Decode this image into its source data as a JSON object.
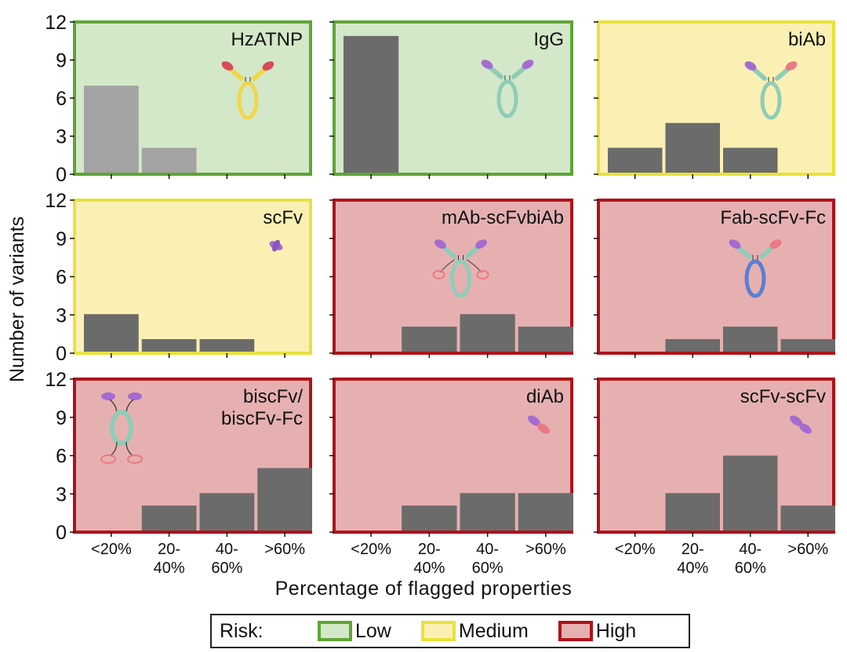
{
  "chart_data": {
    "type": "bar",
    "title": "",
    "xlabel": "Percentage of flagged properties",
    "ylabel": "Number of variants",
    "ylim": [
      0,
      12
    ],
    "yticks": [
      "0",
      "3",
      "6",
      "9",
      "12"
    ],
    "categories": [
      "<20%",
      "20-40%",
      "40-60%",
      ">60%"
    ],
    "category_lines": [
      [
        "<20%"
      ],
      [
        "20-",
        "40%"
      ],
      [
        "40-",
        "60%"
      ],
      [
        ">60%"
      ]
    ],
    "grid": false,
    "panels": [
      {
        "name": "HzATNP",
        "label_lines": [
          "HzATNP"
        ],
        "risk": "low",
        "values": [
          7,
          2,
          0,
          0
        ],
        "bar_color": "#a3a3a3",
        "icon": "full-antibody-icon"
      },
      {
        "name": "IgG",
        "label_lines": [
          "IgG"
        ],
        "risk": "low",
        "values": [
          11,
          0,
          0,
          0
        ],
        "bar_color": "#6b6b6b",
        "icon": "full-antibody-icon"
      },
      {
        "name": "biAb",
        "label_lines": [
          "biAb"
        ],
        "risk": "medium",
        "values": [
          2,
          4,
          2,
          0
        ],
        "bar_color": "#6b6b6b",
        "icon": "full-antibody-icon"
      },
      {
        "name": "scFv",
        "label_lines": [
          "scFv"
        ],
        "risk": "medium",
        "values": [
          3,
          1,
          1,
          0
        ],
        "bar_color": "#6b6b6b",
        "icon": "scfv-fragment-icon"
      },
      {
        "name": "mAb-scFvbiAb",
        "label_lines": [
          "mAb-scFvbiAb"
        ],
        "risk": "high",
        "values": [
          0,
          2,
          3,
          2
        ],
        "bar_color": "#6b6b6b",
        "icon": "antibody-with-scfv-icon"
      },
      {
        "name": "Fab-scFv-Fc",
        "label_lines": [
          "Fab-scFv-Fc"
        ],
        "risk": "high",
        "values": [
          0,
          1,
          2,
          1
        ],
        "bar_color": "#6b6b6b",
        "icon": "full-antibody-icon"
      },
      {
        "name": "biscFv/biscFv-Fc",
        "label_lines": [
          "biscFv/",
          "biscFv-Fc"
        ],
        "risk": "high",
        "values": [
          0,
          2,
          3,
          5
        ],
        "bar_color": "#6b6b6b",
        "icon": "biscfv-fc-icon"
      },
      {
        "name": "diAb",
        "label_lines": [
          "diAb"
        ],
        "risk": "high",
        "values": [
          0,
          2,
          3,
          3
        ],
        "bar_color": "#6b6b6b",
        "icon": "diabody-icon"
      },
      {
        "name": "scFv-scFv",
        "label_lines": [
          "scFv-scFv"
        ],
        "risk": "high",
        "values": [
          0,
          3,
          6,
          2
        ],
        "bar_color": "#6b6b6b",
        "icon": "tandem-scfv-icon"
      }
    ],
    "legend": {
      "title": "Risk:",
      "placement": "bottom-center",
      "entries": [
        {
          "key": "low",
          "label": "Low",
          "fill": "#d3e8c8",
          "border": "#5ea535"
        },
        {
          "key": "medium",
          "label": "Medium",
          "fill": "#fbf0b3",
          "border": "#e8e23a"
        },
        {
          "key": "high",
          "label": "High",
          "fill": "#e6b0b1",
          "border": "#b0121b"
        }
      ]
    }
  }
}
